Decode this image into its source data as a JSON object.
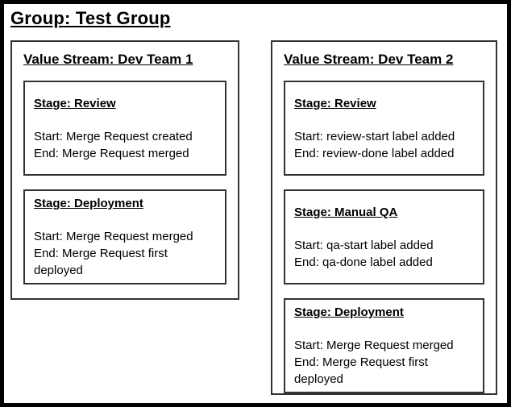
{
  "page": {
    "title": "Group: Test Group"
  },
  "colors": {
    "background": "#ffffff",
    "text": "#000000",
    "outer_border": "#000000",
    "box_border": "#333333"
  },
  "value_streams": [
    {
      "title": "Value Stream: Dev Team 1",
      "stages": [
        {
          "title": "Stage: Review",
          "start": "Start: Merge Request created",
          "end": "End: Merge Request merged"
        },
        {
          "title": "Stage: Deployment",
          "start": "Start: Merge Request merged",
          "end": "End: Merge Request first deployed"
        }
      ]
    },
    {
      "title": "Value Stream: Dev Team 2",
      "stages": [
        {
          "title": "Stage: Review",
          "start": "Start: review-start label added",
          "end": "End: review-done label added"
        },
        {
          "title": "Stage: Manual QA",
          "start": "Start: qa-start label added",
          "end": "End: qa-done label added"
        },
        {
          "title": "Stage: Deployment",
          "start": "Start: Merge Request merged",
          "end": "End: Merge Request first deployed"
        }
      ]
    }
  ]
}
